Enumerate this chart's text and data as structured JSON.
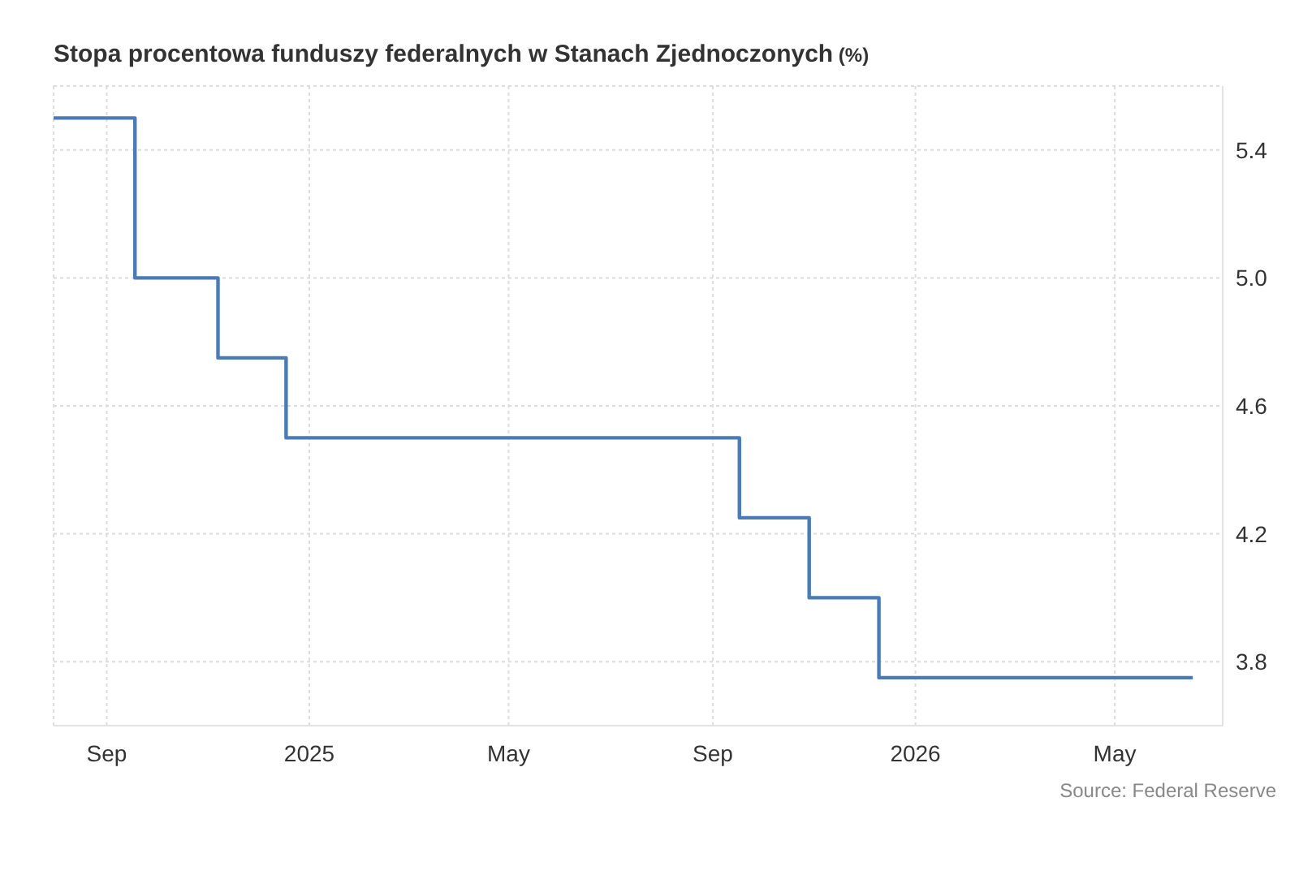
{
  "chart_data": {
    "type": "step",
    "title": "Stopa procentowa funduszy federalnych w Stanach Zjednoczonych",
    "ylabel": "(%)",
    "annotations": [
      "Source: Federal Reserve"
    ],
    "x": [
      "2024-07-31",
      "2024-09-18",
      "2024-11-07",
      "2024-12-18",
      "2025-09-17",
      "2025-10-29",
      "2025-12-10",
      "2026-06-17"
    ],
    "series": [
      {
        "color": "#4a7bb7",
        "values": [
          5.5,
          5.0,
          4.75,
          4.5,
          4.25,
          4.0,
          3.75,
          3.75
        ]
      }
    ],
    "xlim": [
      "2024-07-31",
      "2026-07-05"
    ],
    "xticks": [
      {
        "value": "2024-09-01",
        "label": "Sep"
      },
      {
        "value": "2025-01-01",
        "label": "2025"
      },
      {
        "value": "2025-05-01",
        "label": "May"
      },
      {
        "value": "2025-09-01",
        "label": "Sep"
      },
      {
        "value": "2026-01-01",
        "label": "2026"
      },
      {
        "value": "2026-05-01",
        "label": "May"
      }
    ],
    "ylim": [
      3.6,
      5.6
    ],
    "yticks": [
      3.8,
      4.2,
      4.6,
      {
        "value": 5,
        "label": "5.0"
      },
      5.4
    ],
    "grid": true
  }
}
